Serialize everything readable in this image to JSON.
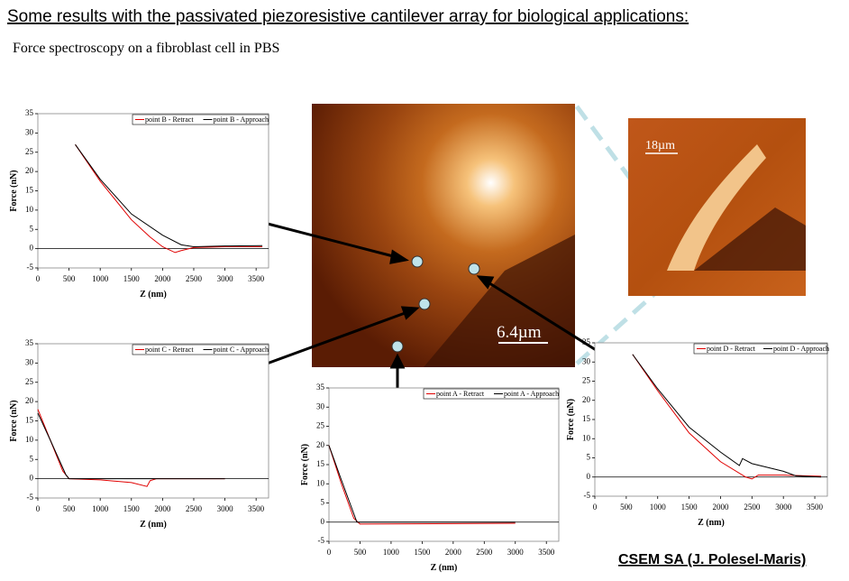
{
  "title": "Some results with the passivated piezoresistive cantilever array for biological applications:",
  "subtitle": "Force spectroscopy on a fibroblast cell in PBS",
  "credit": "CSEM SA (J. Polesel-Maris)",
  "images": {
    "cell_scale": "6.4µm",
    "overview_scale": "18µm"
  },
  "chart_data": [
    {
      "type": "line",
      "xlabel": "Z (nm)",
      "ylabel": "Force (nN)",
      "xlim": [
        0,
        3700
      ],
      "xticks": [
        0,
        500,
        1000,
        1500,
        2000,
        2500,
        3000,
        3500
      ],
      "ylim": [
        -5,
        35
      ],
      "yticks": [
        -5,
        0,
        5,
        10,
        15,
        20,
        25,
        30,
        35
      ],
      "grid": false,
      "series": [
        {
          "name": "point B - Retract",
          "color": "#e00000",
          "x": [
            600,
            1000,
            1500,
            1800,
            2000,
            2200,
            2300,
            2500,
            3000,
            3600
          ],
          "values": [
            27,
            17.5,
            7.5,
            3,
            0.5,
            -1,
            -0.5,
            0.3,
            0.5,
            0.5
          ]
        },
        {
          "name": "point B - Approach",
          "color": "#000000",
          "x": [
            600,
            1000,
            1500,
            2000,
            2300,
            2500,
            3000,
            3600
          ],
          "values": [
            27,
            18,
            9,
            3.5,
            1,
            0.5,
            0.7,
            0.8
          ]
        }
      ]
    },
    {
      "type": "line",
      "xlabel": "Z (nm)",
      "ylabel": "Force (nN)",
      "xlim": [
        0,
        3700
      ],
      "xticks": [
        0,
        500,
        1000,
        1500,
        2000,
        2500,
        3000,
        3500
      ],
      "ylim": [
        -5,
        35
      ],
      "yticks": [
        -5,
        0,
        5,
        10,
        15,
        20,
        25,
        30,
        35
      ],
      "grid": false,
      "series": [
        {
          "name": "point C - Retract",
          "color": "#e00000",
          "x": [
            0,
            200,
            400,
            500,
            1000,
            1500,
            1750,
            1800,
            1900,
            3000
          ],
          "values": [
            18,
            10,
            2,
            0,
            -0.3,
            -1,
            -2,
            -0.5,
            0,
            0
          ]
        },
        {
          "name": "point C - Approach",
          "color": "#000000",
          "x": [
            0,
            200,
            450,
            500,
            1000,
            3000
          ],
          "values": [
            17,
            10,
            1,
            0,
            0,
            0
          ]
        }
      ]
    },
    {
      "type": "line",
      "xlabel": "Z (nm)",
      "ylabel": "Force (nN)",
      "xlim": [
        0,
        3700
      ],
      "xticks": [
        0,
        500,
        1000,
        1500,
        2000,
        2500,
        3000,
        3500
      ],
      "ylim": [
        -5,
        35
      ],
      "yticks": [
        -5,
        0,
        5,
        10,
        15,
        20,
        25,
        30,
        35
      ],
      "grid": false,
      "series": [
        {
          "name": "point A - Retract",
          "color": "#e00000",
          "x": [
            0,
            200,
            400,
            500,
            3000
          ],
          "values": [
            20,
            10,
            1,
            -0.5,
            -0.3
          ]
        },
        {
          "name": "point A - Approach",
          "color": "#000000",
          "x": [
            0,
            200,
            450,
            3000
          ],
          "values": [
            20,
            11,
            0,
            0
          ]
        }
      ]
    },
    {
      "type": "line",
      "xlabel": "Z (nm)",
      "ylabel": "Force (nN)",
      "xlim": [
        0,
        3700
      ],
      "xticks": [
        0,
        500,
        1000,
        1500,
        2000,
        2500,
        3000,
        3500
      ],
      "ylim": [
        -5,
        35
      ],
      "yticks": [
        -5,
        0,
        5,
        10,
        15,
        20,
        25,
        30,
        35
      ],
      "grid": false,
      "series": [
        {
          "name": "point D - Retract",
          "color": "#e00000",
          "x": [
            600,
            1000,
            1500,
            2000,
            2400,
            2500,
            2600,
            3000,
            3600
          ],
          "values": [
            32,
            22.5,
            11.5,
            4,
            0,
            -0.5,
            0.5,
            0.5,
            0.2
          ]
        },
        {
          "name": "point D - Approach",
          "color": "#000000",
          "x": [
            600,
            1000,
            1500,
            2000,
            2300,
            2350,
            2500,
            3000,
            3200,
            3600
          ],
          "values": [
            32,
            23,
            13,
            6.5,
            3,
            4.8,
            3.5,
            1.5,
            0.3,
            0
          ]
        }
      ]
    }
  ]
}
